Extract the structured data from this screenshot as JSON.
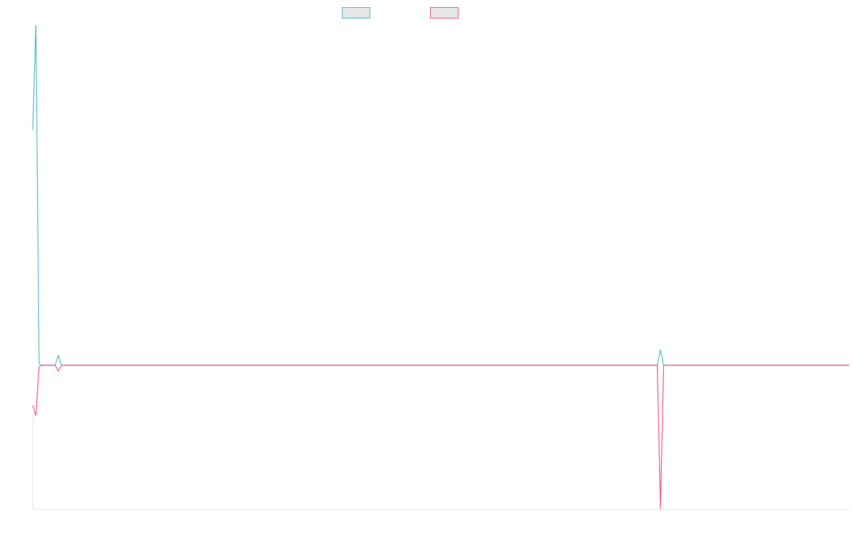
{
  "chart_data": {
    "type": "line",
    "x": [
      0,
      1,
      2,
      3,
      7,
      8,
      9,
      195,
      196,
      197,
      255
    ],
    "xlim": [
      0,
      255
    ],
    "ylim": [
      -202,
      479
    ],
    "series": [
      {
        "color": "#4bb8c0",
        "values": [
          331,
          479,
          2,
          0,
          0,
          14,
          0,
          0,
          22,
          0,
          0
        ]
      },
      {
        "color": "#f0507a",
        "values": [
          -56,
          -71,
          -2,
          0,
          0,
          -8,
          0,
          0,
          -202,
          0,
          0
        ]
      }
    ]
  }
}
